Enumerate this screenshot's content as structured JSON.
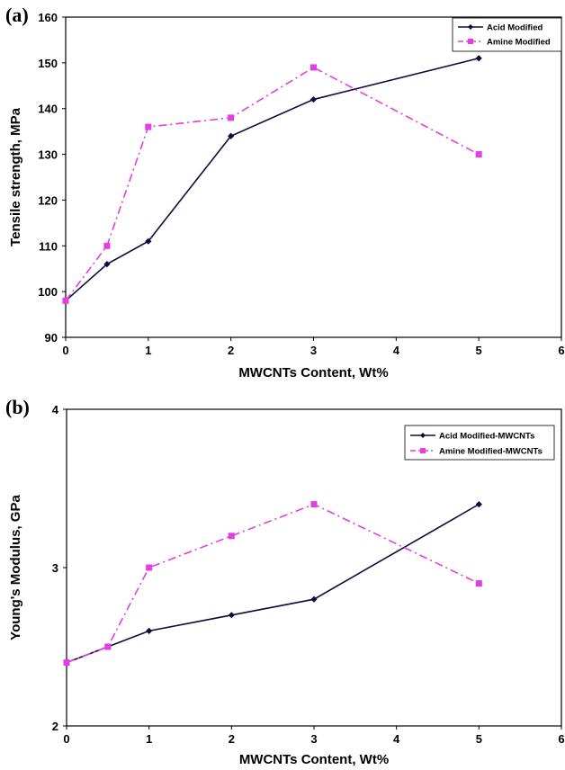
{
  "chart_data": [
    {
      "panel_label": "(a)",
      "type": "line",
      "xlabel": "MWCNTs Content, Wt%",
      "ylabel": "Tensile strength, MPa",
      "xlim": [
        0,
        6
      ],
      "ylim": [
        90,
        160
      ],
      "xticks": [
        0,
        1,
        2,
        3,
        4,
        5,
        6
      ],
      "yticks": [
        90,
        100,
        110,
        120,
        130,
        140,
        150,
        160
      ],
      "legend_position": "top-right",
      "grid": false,
      "series": [
        {
          "name": "Acid Modified",
          "color": "#0d0d3d",
          "marker": "diamond",
          "line": "solid",
          "x": [
            0,
            0.5,
            1,
            2,
            3,
            5
          ],
          "y": [
            98,
            106,
            111,
            134,
            142,
            151
          ]
        },
        {
          "name": "Amine Modified",
          "color": "#e23ee2",
          "marker": "square",
          "line": "dash-dot",
          "x": [
            0,
            0.5,
            1,
            2,
            3,
            5
          ],
          "y": [
            98,
            110,
            136,
            138,
            149,
            130
          ]
        }
      ]
    },
    {
      "panel_label": "(b)",
      "type": "line",
      "xlabel": "MWCNTs Content, Wt%",
      "ylabel": "Young's Modulus, GPa",
      "xlim": [
        0,
        6
      ],
      "ylim": [
        2,
        4
      ],
      "xticks": [
        0,
        1,
        2,
        3,
        4,
        5,
        6
      ],
      "yticks": [
        2,
        3,
        4
      ],
      "legend_position": "top-right",
      "grid": false,
      "series": [
        {
          "name": "Acid Modified-MWCNTs",
          "color": "#0d0d3d",
          "marker": "diamond",
          "line": "solid",
          "x": [
            0,
            0.5,
            1,
            2,
            3,
            5
          ],
          "y": [
            2.4,
            2.5,
            2.6,
            2.7,
            2.8,
            3.4
          ]
        },
        {
          "name": "Amine Modified-MWCNTs",
          "color": "#e23ee2",
          "marker": "square",
          "line": "dash-dot",
          "x": [
            0,
            0.5,
            1,
            2,
            3,
            5
          ],
          "y": [
            2.4,
            2.5,
            3.0,
            3.2,
            3.4,
            2.9
          ]
        }
      ]
    }
  ]
}
